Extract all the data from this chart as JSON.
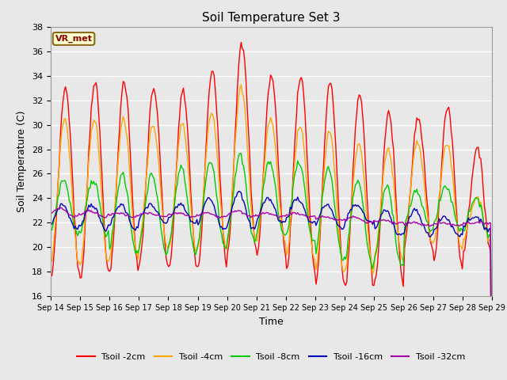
{
  "title": "Soil Temperature Set 3",
  "xlabel": "Time",
  "ylabel": "Soil Temperature (C)",
  "ylim": [
    16,
    38
  ],
  "yticks": [
    16,
    18,
    20,
    22,
    24,
    26,
    28,
    30,
    32,
    34,
    36,
    38
  ],
  "x_labels": [
    "Sep 14",
    "Sep 15",
    "Sep 16",
    "Sep 17",
    "Sep 18",
    "Sep 19",
    "Sep 20",
    "Sep 21",
    "Sep 22",
    "Sep 23",
    "Sep 24",
    "Sep 25",
    "Sep 26",
    "Sep 27",
    "Sep 28",
    "Sep 29"
  ],
  "annotation": "VR_met",
  "series": {
    "Tsoil -2cm": {
      "color": "#FF0000",
      "lw": 1.0
    },
    "Tsoil -4cm": {
      "color": "#FFA500",
      "lw": 1.0
    },
    "Tsoil -8cm": {
      "color": "#00CC00",
      "lw": 1.0
    },
    "Tsoil -16cm": {
      "color": "#0000BB",
      "lw": 1.0
    },
    "Tsoil -32cm": {
      "color": "#AA00AA",
      "lw": 1.0
    }
  },
  "bg_color": "#E8E8E8",
  "grid_color": "#FFFFFF",
  "n_days": 15,
  "peak_2cm": [
    33.0,
    33.5,
    33.5,
    33.0,
    32.7,
    34.5,
    36.5,
    34.0,
    34.0,
    33.5,
    32.5,
    31.0,
    30.5,
    31.5,
    28.0
  ],
  "trough_2cm": [
    17.5,
    17.5,
    18.0,
    18.5,
    18.0,
    18.5,
    19.8,
    19.5,
    18.0,
    17.0,
    16.8,
    17.0,
    20.0,
    18.5,
    19.5
  ],
  "peak_4cm": [
    30.5,
    30.5,
    30.5,
    30.0,
    30.0,
    31.0,
    33.0,
    30.5,
    30.0,
    29.5,
    28.5,
    28.0,
    28.5,
    28.5,
    24.0
  ],
  "trough_4cm": [
    18.5,
    18.5,
    19.0,
    20.0,
    19.5,
    20.0,
    20.5,
    20.5,
    19.0,
    18.0,
    18.0,
    19.0,
    20.5,
    20.0,
    20.5
  ],
  "peak_8cm": [
    25.5,
    25.5,
    26.0,
    26.0,
    26.5,
    27.0,
    27.5,
    27.0,
    27.0,
    26.5,
    25.5,
    25.0,
    24.5,
    25.0,
    24.0
  ],
  "trough_8cm": [
    21.0,
    21.0,
    19.5,
    19.5,
    19.5,
    20.0,
    20.5,
    21.0,
    20.5,
    19.0,
    18.5,
    18.5,
    21.5,
    21.5,
    21.0
  ],
  "peak_16cm": [
    23.5,
    23.5,
    23.5,
    23.5,
    23.5,
    24.0,
    24.5,
    24.0,
    24.0,
    23.5,
    23.5,
    23.0,
    23.0,
    22.5,
    22.5
  ],
  "trough_16cm": [
    21.5,
    21.5,
    21.5,
    22.0,
    22.0,
    21.5,
    21.5,
    22.0,
    22.0,
    21.5,
    22.0,
    21.0,
    21.0,
    21.0,
    21.5
  ],
  "peak_32cm": [
    23.2,
    23.0,
    22.8,
    22.8,
    22.8,
    22.8,
    23.0,
    22.8,
    22.8,
    22.5,
    22.5,
    22.2,
    22.0,
    22.0,
    22.0
  ],
  "trough_32cm": [
    22.5,
    22.5,
    22.5,
    22.5,
    22.5,
    22.5,
    22.5,
    22.5,
    22.5,
    22.2,
    22.0,
    22.0,
    21.8,
    21.8,
    22.0
  ],
  "phase_4cm": 0.15,
  "phase_8cm": 0.4,
  "phase_16cm": 0.7,
  "phase_32cm": 1.2
}
